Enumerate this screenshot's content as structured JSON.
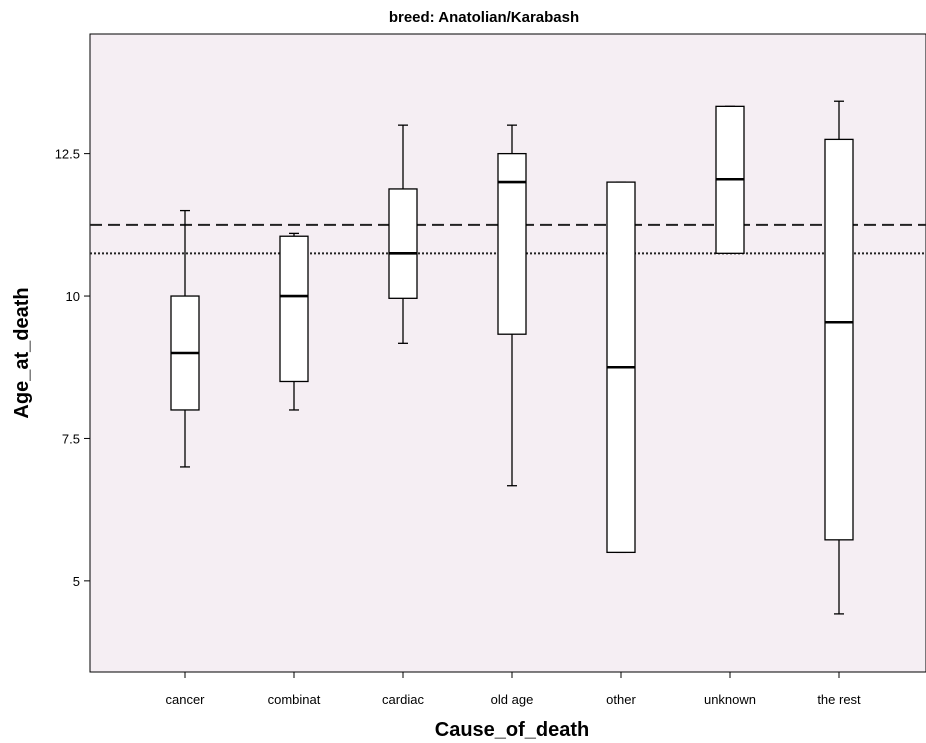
{
  "chart_data": {
    "type": "boxplot",
    "title": "breed: Anatolian/Karabash",
    "xlabel": "Cause_of_death",
    "ylabel": "Age_at_death",
    "ylim": [
      3.4,
      14.6
    ],
    "yticks": [
      5,
      7.5,
      10,
      12.5
    ],
    "ytick_labels": [
      "5",
      "7.5",
      "10",
      "12.5"
    ],
    "grid": false,
    "background_color": "#f5eef3",
    "categories": [
      "cancer",
      "combinat",
      "cardiac",
      "old age",
      "other",
      "unknown",
      "the rest"
    ],
    "boxes": [
      {
        "category": "cancer",
        "whisker_low": 7.0,
        "q1": 8.0,
        "median": 9.0,
        "q3": 10.0,
        "whisker_high": 11.5
      },
      {
        "category": "combinat",
        "whisker_low": 8.0,
        "q1": 8.5,
        "median": 10.0,
        "q3": 11.05,
        "whisker_high": 11.1
      },
      {
        "category": "cardiac",
        "whisker_low": 9.17,
        "q1": 9.96,
        "median": 10.75,
        "q3": 11.88,
        "whisker_high": 13.0
      },
      {
        "category": "old age",
        "whisker_low": 6.67,
        "q1": 9.33,
        "median": 12.0,
        "q3": 12.5,
        "whisker_high": 13.0
      },
      {
        "category": "other",
        "whisker_low": 5.5,
        "q1": 5.5,
        "median": 8.75,
        "q3": 12.0,
        "whisker_high": 12.0
      },
      {
        "category": "unknown",
        "whisker_low": 10.75,
        "q1": 10.75,
        "median": 12.05,
        "q3": 13.33,
        "whisker_high": 13.33
      },
      {
        "category": "the rest",
        "whisker_low": 4.42,
        "q1": 5.72,
        "median": 9.54,
        "q3": 12.75,
        "whisker_high": 13.42
      }
    ],
    "reference_lines": [
      {
        "style": "dashed",
        "value": 11.25
      },
      {
        "style": "dotted",
        "value": 10.75
      }
    ]
  }
}
